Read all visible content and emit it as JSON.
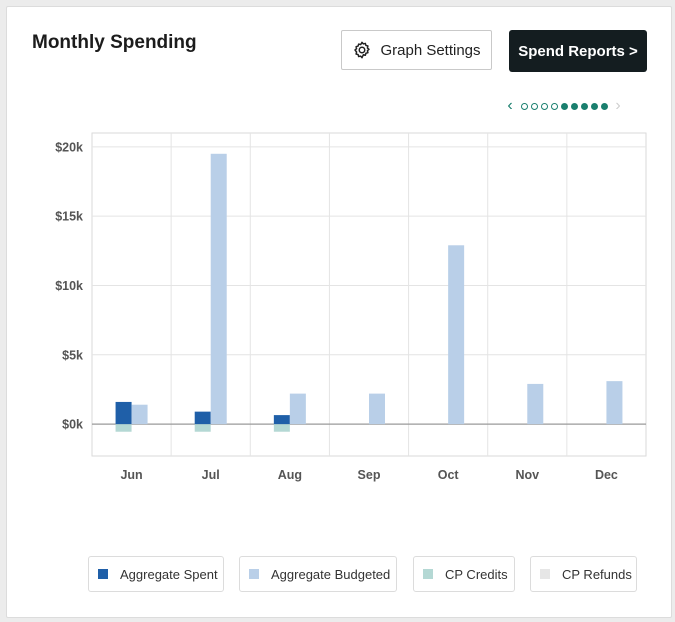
{
  "title": "Monthly Spending",
  "buttons": {
    "graph_settings": "Graph Settings",
    "spend_reports": "Spend Reports >"
  },
  "pager": {
    "prev": "‹",
    "next": "›",
    "dots": [
      false,
      false,
      false,
      false,
      true,
      true,
      true,
      true,
      true
    ]
  },
  "colors": {
    "spent": "#1f5fa8",
    "budgeted": "#b9cfe8",
    "credits": "#b4d8d4",
    "refunds": "#e6e6e6",
    "accent": "#1a7f6e"
  },
  "legend": [
    {
      "label": "Aggregate Spent",
      "color": "#1f5fa8"
    },
    {
      "label": "Aggregate Budgeted",
      "color": "#b9cfe8"
    },
    {
      "label": "CP Credits",
      "color": "#b4d8d4"
    },
    {
      "label": "CP Refunds",
      "color": "#e6e6e6"
    }
  ],
  "chart_data": {
    "type": "bar",
    "categories": [
      "Jun",
      "Jul",
      "Aug",
      "Sep",
      "Oct",
      "Nov",
      "Dec"
    ],
    "series": [
      {
        "name": "Aggregate Spent",
        "values": [
          1600,
          900,
          650,
          0,
          0,
          0,
          0
        ]
      },
      {
        "name": "Aggregate Budgeted",
        "values": [
          1400,
          19500,
          2200,
          2200,
          12900,
          2900,
          3100
        ]
      },
      {
        "name": "CP Credits",
        "values": [
          -550,
          -550,
          -550,
          0,
          0,
          0,
          0
        ]
      },
      {
        "name": "CP Refunds",
        "values": [
          0,
          0,
          0,
          0,
          0,
          0,
          0
        ]
      }
    ],
    "yticks": [
      0,
      5000,
      10000,
      15000,
      20000
    ],
    "ytick_labels": [
      "$0k",
      "$5k",
      "$10k",
      "$15k",
      "$20k"
    ],
    "ylim": [
      -2300,
      21000
    ],
    "grid": true,
    "legend_position": "bottom"
  }
}
